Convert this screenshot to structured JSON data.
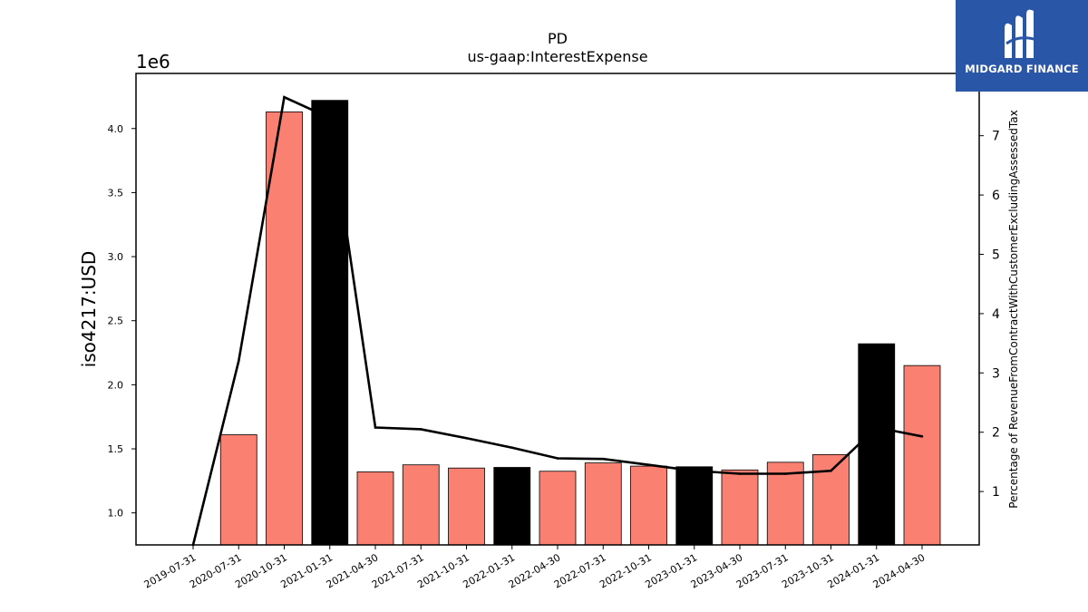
{
  "chart_data": {
    "type": "bar",
    "title": "PD",
    "subtitle": "us-gaap:InterestExpense",
    "ylabel": "iso4217:USD",
    "y_multiplier": "1e6",
    "y2label": "Percentage of RevenueFromContractWithCustomerExcludingAssessedTax",
    "ylim": [
      750000,
      4430000
    ],
    "y2lim": [
      0.1,
      8.05
    ],
    "yticks": [
      1000000,
      1500000,
      2000000,
      2500000,
      3000000,
      3500000,
      4000000
    ],
    "ytick_labels": [
      "1.0",
      "1.5",
      "2.0",
      "2.5",
      "3.0",
      "3.5",
      "4.0"
    ],
    "y2ticks": [
      1,
      2,
      3,
      4,
      5,
      6,
      7
    ],
    "y2tick_labels": [
      "1",
      "2",
      "3",
      "4",
      "5",
      "6",
      "7"
    ],
    "categories": [
      "2019-07-31",
      "2020-07-31",
      "2020-10-31",
      "2021-01-31",
      "2021-04-30",
      "2021-07-31",
      "2021-10-31",
      "2022-01-31",
      "2022-04-30",
      "2022-07-31",
      "2022-10-31",
      "2023-01-31",
      "2023-04-30",
      "2023-07-31",
      "2023-10-31",
      "2024-01-31",
      "2024-04-30"
    ],
    "series": [
      {
        "type": "bar",
        "axis": "left",
        "values": [
          null,
          1610000,
          4130000,
          4220000,
          1320000,
          1375000,
          1350000,
          1355000,
          1325000,
          1390000,
          1365000,
          1360000,
          1335000,
          1395000,
          1455000,
          2320000,
          2150000
        ],
        "colors": [
          "#fa8072",
          "#fa8072",
          "#fa8072",
          "#000000",
          "#fa8072",
          "#fa8072",
          "#fa8072",
          "#000000",
          "#fa8072",
          "#fa8072",
          "#fa8072",
          "#000000",
          "#fa8072",
          "#fa8072",
          "#fa8072",
          "#000000",
          "#fa8072"
        ]
      },
      {
        "type": "line",
        "axis": "right",
        "color": "#000000",
        "values": [
          0.1,
          3.2,
          7.65,
          7.3,
          2.08,
          2.05,
          1.9,
          1.74,
          1.56,
          1.55,
          1.45,
          1.35,
          1.3,
          1.3,
          1.35,
          2.08,
          1.93
        ]
      }
    ],
    "grid": false,
    "legend": "none"
  },
  "logo": {
    "text": "MIDGARD FINANCE",
    "icon": "midgard-m-logo-icon"
  }
}
